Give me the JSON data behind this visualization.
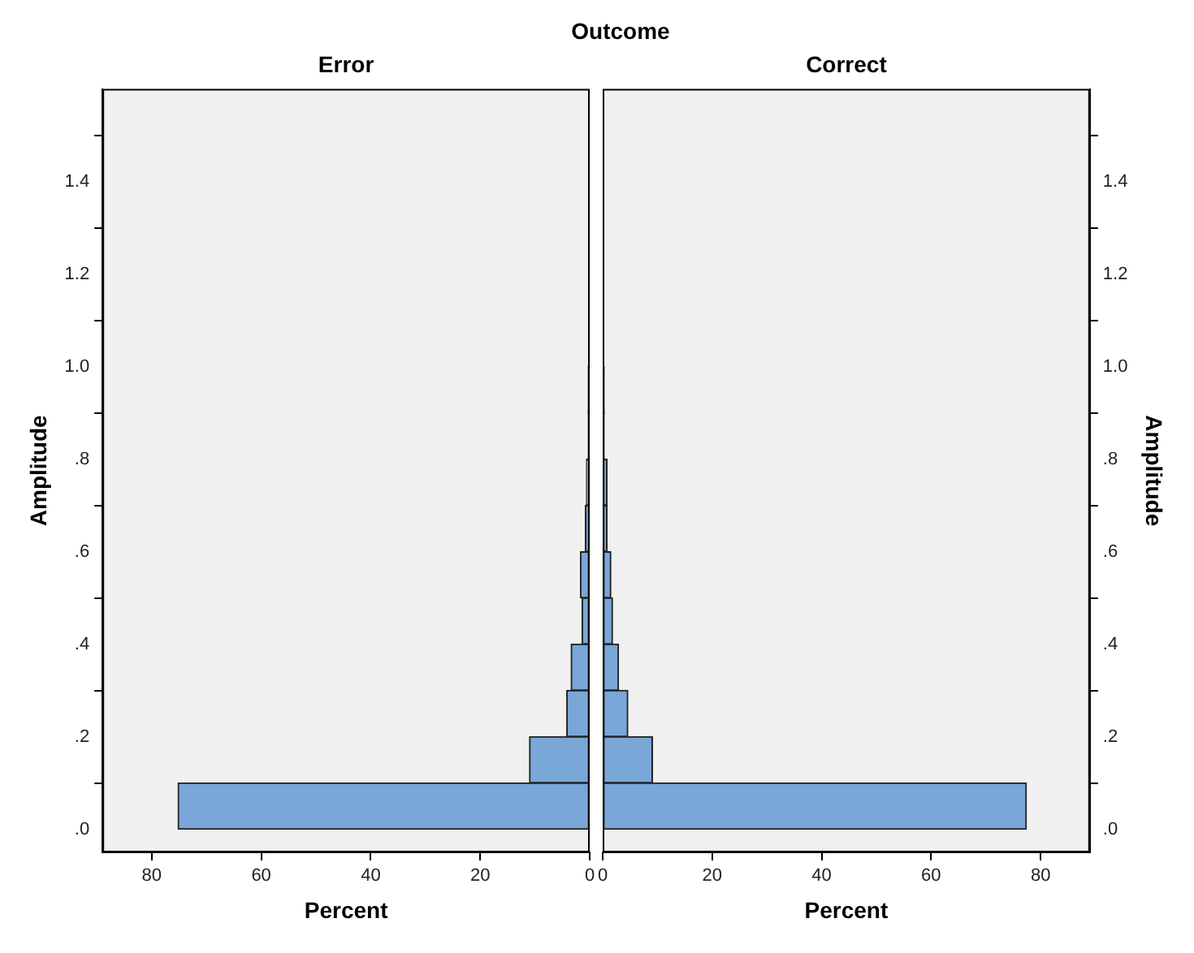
{
  "chart_data": [
    {
      "type": "histogram",
      "orientation": "horizontal",
      "title": "Error",
      "xlabel": "Percent",
      "ylabel": "Amplitude",
      "annotations": [
        "Outcome"
      ],
      "color": "#79a7d7",
      "bins": [
        0,
        0.1,
        0.2,
        0.3,
        0.4,
        0.5,
        0.6,
        0.7,
        0.8,
        0.9,
        1.0,
        1.1,
        1.2,
        1.3,
        1.4,
        1.5
      ],
      "values": [
        75.2,
        11.0,
        4.2,
        3.4,
        1.4,
        1.7,
        0.8,
        0.6,
        0.3,
        0.3,
        0.2,
        0.2,
        0.2,
        0.2,
        0.1
      ],
      "xlim": [
        89,
        0
      ],
      "xticks": [
        80,
        60,
        40,
        20,
        0
      ],
      "ylim": [
        -0.05,
        1.6
      ],
      "yticks": [
        {
          "value": 0,
          "label": ".0"
        },
        {
          "value": 0.2,
          "label": ".2"
        },
        {
          "value": 0.4,
          "label": ".4"
        },
        {
          "value": 0.6,
          "label": ".6"
        },
        {
          "value": 0.8,
          "label": ".8"
        },
        {
          "value": 1.0,
          "label": "1.0"
        },
        {
          "value": 1.2,
          "label": "1.2"
        },
        {
          "value": 1.4,
          "label": "1.4"
        }
      ],
      "grid": false
    },
    {
      "type": "histogram",
      "orientation": "horizontal",
      "title": "Correct",
      "xlabel": "Percent",
      "ylabel": "Amplitude",
      "color": "#79a7d7",
      "bins": [
        0,
        0.1,
        0.2,
        0.3,
        0.4,
        0.5,
        0.6,
        0.7,
        0.8,
        0.9,
        1.0,
        1.1,
        1.2,
        1.3,
        1.4,
        1.5
      ],
      "values": [
        77.4,
        9.1,
        4.6,
        2.9,
        1.8,
        1.5,
        0.8,
        0.8,
        0.3,
        0.3,
        0.2,
        0.2,
        0.2,
        0.2,
        0.1
      ],
      "xlim": [
        0,
        89
      ],
      "xticks": [
        0,
        20,
        40,
        60,
        80
      ],
      "ylim": [
        -0.05,
        1.6
      ],
      "yticks": [
        {
          "value": 0,
          "label": ".0"
        },
        {
          "value": 0.2,
          "label": ".2"
        },
        {
          "value": 0.4,
          "label": ".4"
        },
        {
          "value": 0.6,
          "label": ".6"
        },
        {
          "value": 0.8,
          "label": ".8"
        },
        {
          "value": 1.0,
          "label": "1.0"
        },
        {
          "value": 1.2,
          "label": "1.2"
        },
        {
          "value": 1.4,
          "label": "1.4"
        }
      ],
      "grid": false
    }
  ]
}
